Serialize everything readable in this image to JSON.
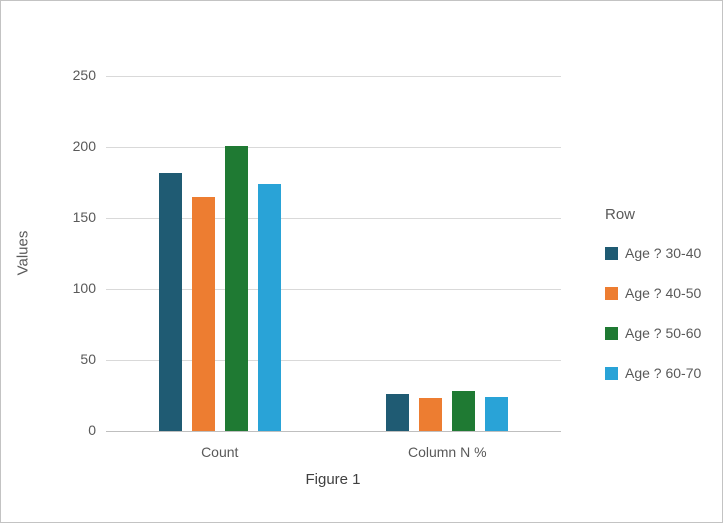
{
  "chart_data": {
    "type": "bar",
    "title": "Figure 1",
    "ylabel": "Values",
    "categories": [
      "Count",
      "Column N %"
    ],
    "series": [
      {
        "name": "Age ? 30-40",
        "color": "#1f5b73",
        "values": [
          182,
          26
        ]
      },
      {
        "name": "Age ? 40-50",
        "color": "#ed7d31",
        "values": [
          165,
          23
        ]
      },
      {
        "name": "Age ? 50-60",
        "color": "#1f7a33",
        "values": [
          201,
          28
        ]
      },
      {
        "name": "Age ? 60-70",
        "color": "#29a3d7",
        "values": [
          174,
          24
        ]
      }
    ],
    "ylim": [
      0,
      250
    ],
    "yticks": [
      0,
      50,
      100,
      150,
      200,
      250
    ],
    "legend_title": "Row",
    "legend_position": "right",
    "grid": true
  }
}
